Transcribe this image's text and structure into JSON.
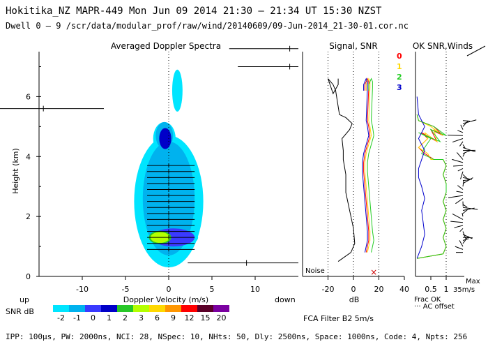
{
  "header": {
    "line1": "Hokitika_NZ   MAPR-449   Mon Jun 09 2014 21:30 – 21:34 UT 15:30 NZST",
    "line2": "Dwell   0 – 9   /scr/data/modular_prof/raw/wind/20140609/09-Jun-2014_21-30-01.cor.nc"
  },
  "footer": "IPP: 100μs,  PW: 2000ns,  NCI: 28,  NSpec: 10,  NHts: 50,  Dly: 2500ns,  Space: 1000ns,  Code: 4,  Npts: 256",
  "chart_data": [
    {
      "type": "heatmap",
      "title": "Averaged Doppler Spectra",
      "xlabel": "Doppler Velocity (m/s)",
      "ylabel": "Height (km)",
      "xlim": [
        -15,
        15
      ],
      "ylim": [
        0,
        7.5
      ],
      "xticks": [
        -10,
        -5,
        0,
        5,
        10
      ],
      "yticks": [
        0,
        2,
        4,
        6
      ],
      "direction_labels": {
        "left": "up",
        "right": "down"
      },
      "colorbar": {
        "label": "SNR dB",
        "ticks": [
          -2,
          -1,
          0,
          1,
          2,
          3,
          6,
          9,
          12,
          15,
          20
        ],
        "colors": [
          "#00e5ff",
          "#00b2ee",
          "#3a3aff",
          "#0000c8",
          "#28c828",
          "#b4ff00",
          "#ffd800",
          "#ff9600",
          "#ff0000",
          "#5a0028",
          "#7a00a0"
        ]
      },
      "blobs": [
        {
          "v": -0.5,
          "h": 4.6,
          "sv": 1.3,
          "sh": 0.55,
          "level": 0
        },
        {
          "v": 0.0,
          "h": 2.5,
          "sv": 4.0,
          "sh": 2.2,
          "level": 0
        },
        {
          "v": 0.2,
          "h": 1.3,
          "sv": 3.2,
          "sh": 0.35,
          "level": 0
        },
        {
          "v": 1.0,
          "h": 6.2,
          "sv": 0.6,
          "sh": 0.7,
          "level": 0
        },
        {
          "v": 0.0,
          "h": 2.6,
          "sv": 3.0,
          "sh": 1.9,
          "level": 1
        },
        {
          "v": -0.5,
          "h": 4.7,
          "sv": 1.0,
          "sh": 0.45,
          "level": 1
        },
        {
          "v": 0.5,
          "h": 1.3,
          "sv": 2.5,
          "sh": 0.3,
          "level": 2
        },
        {
          "v": -0.4,
          "h": 4.6,
          "sv": 0.7,
          "sh": 0.35,
          "level": 3
        },
        {
          "v": -1.0,
          "h": 1.3,
          "sv": 1.3,
          "sh": 0.22,
          "level": 4
        },
        {
          "v": -1.0,
          "h": 1.3,
          "sv": 1.1,
          "sh": 0.18,
          "level": 5
        }
      ],
      "spread_bars": [
        {
          "h": 7.6,
          "v1": 7,
          "v2": 15,
          "c": 14
        },
        {
          "h": 7.0,
          "v1": 8,
          "v2": 15,
          "c": 14
        },
        {
          "h": 5.6,
          "v1": -20,
          "v2": -7.5,
          "c": -14.5
        },
        {
          "h": 0.45,
          "v1": 2.2,
          "v2": 15,
          "c": 9
        }
      ],
      "bright_bars_h": [
        0.9,
        1.1,
        1.3,
        1.5,
        1.7,
        1.9,
        2.1,
        2.3,
        2.5,
        2.7,
        2.9,
        3.1,
        3.3,
        3.5,
        3.7
      ]
    },
    {
      "type": "line",
      "title": "Signal, SNR",
      "xlabel": "dB",
      "xlim": [
        -40,
        40
      ],
      "xticks": [
        -20,
        0,
        20,
        40
      ],
      "annotations": [
        "Noise"
      ],
      "series": [
        {
          "name": "0",
          "color": "#ff0000",
          "x": [
            10,
            11,
            12,
            12,
            11,
            10,
            9,
            8,
            8,
            9,
            11,
            13,
            12,
            11,
            12,
            12,
            11,
            9,
            9
          ],
          "y": [
            0.8,
            1.0,
            1.2,
            1.5,
            2.0,
            2.5,
            3.0,
            3.5,
            3.8,
            4.1,
            4.4,
            4.7,
            5.0,
            5.2,
            6.3,
            6.5,
            6.6,
            6.4,
            6.2
          ]
        },
        {
          "name": "1",
          "color": "#ffd800",
          "x": [
            11,
            12,
            13,
            13,
            12,
            11,
            10,
            9,
            9,
            10,
            12,
            14,
            13,
            12,
            13,
            13,
            12,
            10,
            10
          ],
          "y": [
            0.8,
            1.0,
            1.2,
            1.5,
            2.0,
            2.5,
            3.0,
            3.5,
            3.8,
            4.1,
            4.4,
            4.7,
            5.0,
            5.2,
            6.3,
            6.5,
            6.6,
            6.4,
            6.2
          ]
        },
        {
          "name": "2",
          "color": "#22cc22",
          "x": [
            14,
            15,
            16,
            15,
            14,
            13,
            12,
            11,
            11,
            12,
            14,
            16,
            15,
            14,
            15,
            15,
            14,
            12,
            12
          ],
          "y": [
            0.8,
            1.0,
            1.2,
            1.5,
            2.0,
            2.5,
            3.0,
            3.5,
            3.8,
            4.1,
            4.4,
            4.7,
            5.0,
            5.2,
            6.3,
            6.5,
            6.6,
            6.4,
            6.2
          ]
        },
        {
          "name": "3",
          "color": "#0000cc",
          "x": [
            9,
            10,
            11,
            11,
            10,
            9,
            8,
            7,
            7,
            8,
            10,
            12,
            11,
            10,
            11,
            11,
            10,
            8,
            8
          ],
          "y": [
            0.8,
            1.0,
            1.2,
            1.5,
            2.0,
            2.5,
            3.0,
            3.5,
            3.8,
            4.1,
            4.4,
            4.7,
            5.0,
            5.2,
            6.3,
            6.5,
            6.6,
            6.4,
            6.2
          ]
        },
        {
          "name": "signal",
          "color": "#000000",
          "x": [
            -12,
            -2,
            1,
            0,
            -3,
            -6,
            -6,
            -8,
            -8,
            -9,
            -3,
            -1,
            -6,
            -11,
            -14,
            -16,
            -20,
            -16,
            -12,
            -12
          ],
          "y": [
            0.5,
            0.8,
            1.1,
            1.6,
            2.2,
            2.8,
            3.4,
            3.9,
            4.2,
            4.6,
            4.9,
            5.1,
            5.3,
            5.4,
            6.2,
            6.4,
            6.6,
            6.1,
            6.4,
            6.6
          ]
        }
      ],
      "refs": [
        -20,
        0,
        20
      ]
    },
    {
      "type": "line",
      "title": "OK SNR,Winds",
      "legend": [
        "0",
        "1",
        "2",
        "3"
      ],
      "legend_colors": [
        "#ff0000",
        "#ffd800",
        "#22cc22",
        "#0000cc"
      ],
      "xlim": [
        0,
        1
      ],
      "xticks": [
        0.5,
        1
      ],
      "xlabels": [
        "Frac OK",
        "··· AC offset"
      ],
      "max_label": [
        "Max",
        "35m/s"
      ],
      "series": [
        {
          "name": "0",
          "color": "#ff0000",
          "x": [
            0.05,
            0.9,
            1,
            0.9,
            1,
            0.9,
            1,
            0.9,
            1,
            1,
            0.9,
            1,
            0.9,
            0.6,
            0.3,
            0.1,
            0.4,
            0.2,
            0.7,
            0.5,
            0.9,
            0.6,
            0.1,
            0.05
          ],
          "y": [
            0.6,
            0.75,
            1,
            1.3,
            1.6,
            1.9,
            2.2,
            2.5,
            2.8,
            3.1,
            3.4,
            3.7,
            3.9,
            3.9,
            4.1,
            4.3,
            4.6,
            4.8,
            4.5,
            4.9,
            4.7,
            5.0,
            5.2,
            5.4
          ]
        },
        {
          "name": "1",
          "color": "#ffd800",
          "x": [
            0.05,
            0.9,
            1,
            0.9,
            1,
            0.9,
            1,
            0.9,
            1,
            1,
            0.9,
            1,
            0.9,
            0.5,
            0.4,
            0.1,
            0.4,
            0.3,
            0.7,
            0.6,
            0.9,
            0.5,
            0.1,
            0.05
          ],
          "y": [
            0.6,
            0.75,
            1,
            1.3,
            1.6,
            1.9,
            2.2,
            2.5,
            2.8,
            3.1,
            3.4,
            3.7,
            3.9,
            3.9,
            4.1,
            4.3,
            4.6,
            4.8,
            4.5,
            4.9,
            4.7,
            5.0,
            5.2,
            5.4
          ]
        },
        {
          "name": "2",
          "color": "#22cc22",
          "x": [
            0.05,
            0.9,
            1,
            0.9,
            1,
            0.9,
            1,
            0.9,
            1,
            1,
            0.9,
            1,
            0.9,
            0.6,
            0.2,
            0.3,
            0.5,
            0.1,
            0.8,
            0.5,
            1,
            0.6,
            0.1,
            0.05
          ],
          "y": [
            0.6,
            0.75,
            1,
            1.3,
            1.6,
            1.9,
            2.2,
            2.5,
            2.8,
            3.1,
            3.4,
            3.7,
            3.9,
            3.9,
            4.1,
            4.3,
            4.6,
            4.8,
            4.5,
            4.9,
            4.7,
            5.0,
            5.2,
            5.4
          ]
        },
        {
          "name": "3",
          "color": "#0000cc",
          "x": [
            0.05,
            0.2,
            0.3,
            0.25,
            0.2,
            0.3,
            0.2,
            0.1,
            0.1,
            0.2,
            0.3,
            0.2,
            0.1,
            0.2,
            0.3,
            0.2,
            0.1,
            0.05
          ],
          "y": [
            0.6,
            1,
            1.4,
            1.8,
            2.2,
            2.6,
            3,
            3.3,
            3.6,
            3.9,
            4.2,
            4.4,
            4.6,
            4.8,
            5.0,
            5.2,
            5.4,
            6.0
          ]
        }
      ],
      "wind_heights": [
        0.8,
        0.9,
        1.0,
        1.1,
        1.2,
        1.3,
        1.4,
        1.5,
        1.6,
        1.7,
        1.8,
        1.9,
        2.0,
        2.1,
        2.2,
        2.3,
        2.4,
        2.5,
        2.6,
        2.7,
        2.8,
        2.9,
        3.0,
        3.1,
        3.2,
        3.3,
        3.4,
        3.5,
        3.6,
        3.7,
        3.8,
        3.9,
        4.0,
        4.1,
        4.2,
        4.3,
        4.4,
        4.5,
        4.6,
        4.7,
        4.8,
        4.9,
        5.0,
        5.1,
        5.2
      ],
      "filter_label": "FCA Filter B2  5m/s"
    }
  ]
}
